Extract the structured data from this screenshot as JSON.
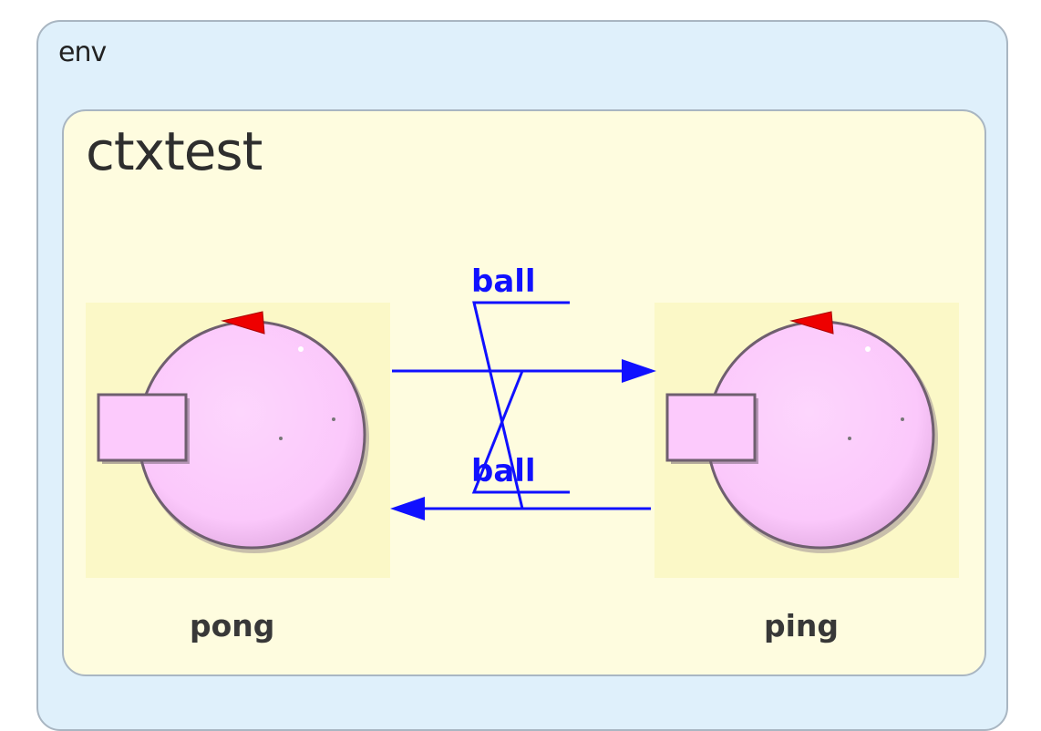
{
  "env": {
    "title": "env"
  },
  "context": {
    "title": "ctxtest"
  },
  "actors": {
    "pong": {
      "label": "pong"
    },
    "ping": {
      "label": "ping"
    }
  },
  "messages": {
    "top": {
      "label": "ball"
    },
    "bottom": {
      "label": "ball"
    }
  },
  "colors": {
    "env_fill": "#dff0fb",
    "context_fill": "#fefcdf",
    "actor_fill": "#fccafc",
    "port_marker": "#ee0000",
    "connection": "#1010ff"
  },
  "icons": [
    "actor-circle-icon",
    "port-square-icon",
    "port-triangle-icon",
    "arrow-head-icon"
  ]
}
